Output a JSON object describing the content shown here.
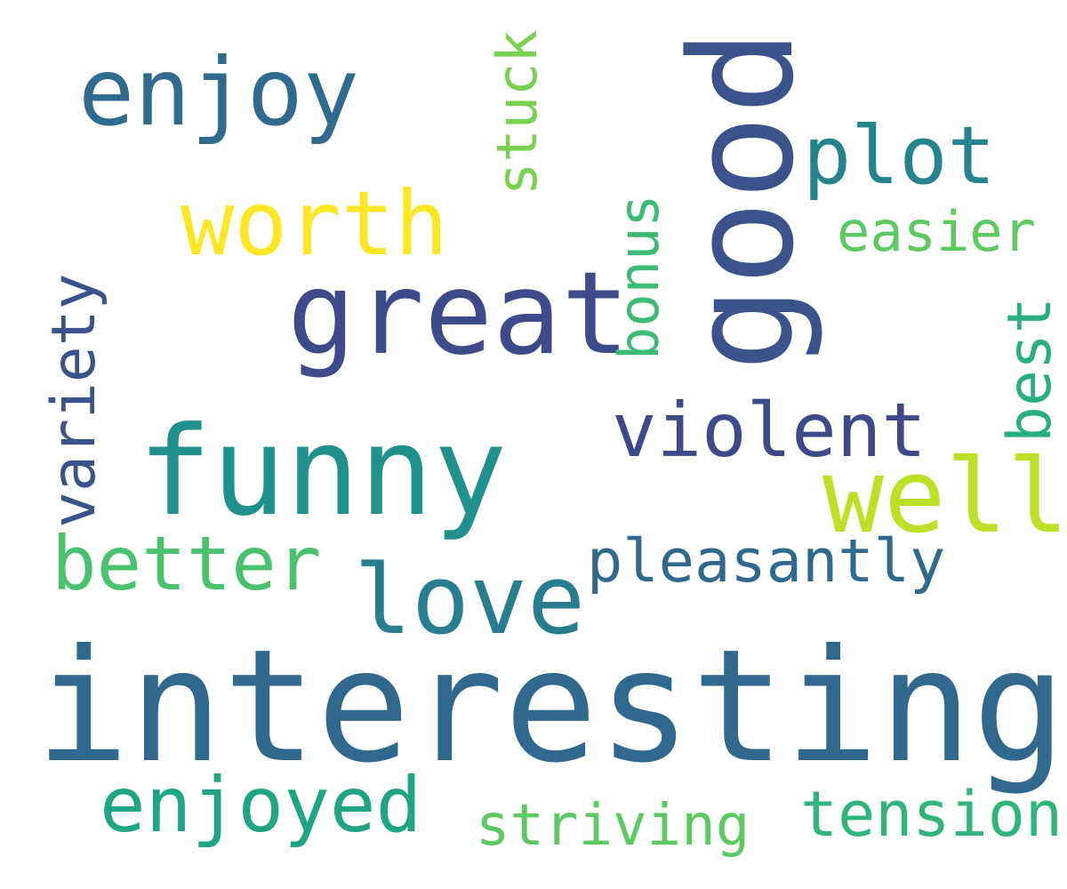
{
  "words": {
    "interesting": "interesting",
    "funny": "funny",
    "great": "great",
    "enjoy": "enjoy",
    "worth": "worth",
    "love": "love",
    "better": "better",
    "enjoyed": "enjoyed",
    "striving": "striving",
    "tension": "tension",
    "pleasantly": "pleasantly",
    "violent": "violent",
    "well": "well",
    "plot": "plot",
    "easier": "easier",
    "good": "good",
    "bonus": "bonus",
    "stuck": "stuck",
    "variety": "variety",
    "best": "best"
  },
  "colors": {
    "background": "#ffffff",
    "interesting": "#31688e",
    "funny": "#21918c",
    "great": "#3e4a89",
    "enjoy": "#306a8e",
    "worth": "#fde725",
    "love": "#287d8e",
    "better": "#4ac16d",
    "enjoyed": "#20a486",
    "striving": "#5ec962",
    "tension": "#2fb47c",
    "pleasantly": "#31688e",
    "violent": "#3e4989",
    "well": "#bddf26",
    "plot": "#25838e",
    "easier": "#5ec962",
    "good": "#3b528b",
    "bonus": "#3bbb75",
    "stuck": "#7ad151",
    "variety": "#3b528b",
    "best": "#29af7f"
  }
}
